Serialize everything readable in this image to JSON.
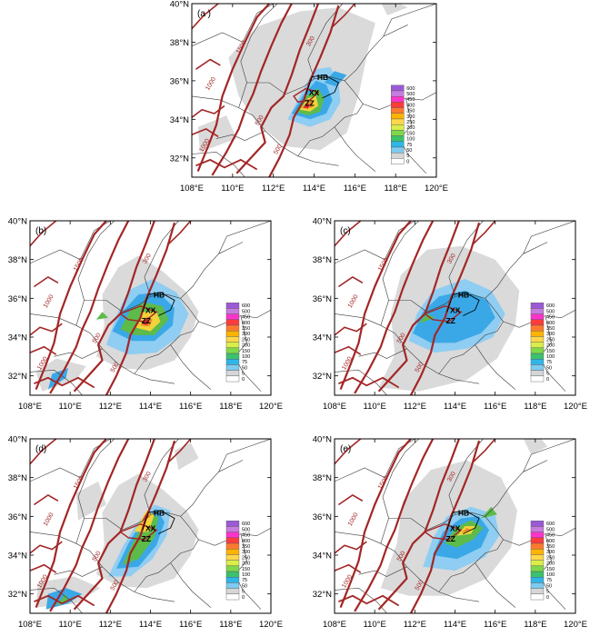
{
  "figure": {
    "panels": [
      {
        "id": "a",
        "label": "(a )"
      },
      {
        "id": "b",
        "label": "(b)"
      },
      {
        "id": "c",
        "label": "(c)"
      },
      {
        "id": "d",
        "label": "(d)"
      },
      {
        "id": "e",
        "label": "(e)"
      }
    ],
    "x_ticks": [
      "108°E",
      "110°E",
      "112°E",
      "114°E",
      "116°E",
      "118°E",
      "120°E"
    ],
    "y_ticks": [
      "32°N",
      "34°N",
      "36°N",
      "38°N",
      "40°N"
    ],
    "city_labels": {
      "hb": "HB",
      "xx": "XX",
      "zz": "ZZ"
    },
    "contour_labels": [
      "1000",
      "1500",
      "500",
      "300"
    ],
    "legend": {
      "levels": [
        "600",
        "500",
        "450",
        "400",
        "350",
        "300",
        "250",
        "200",
        "150",
        "100",
        "75",
        "50",
        "5",
        "0"
      ],
      "colors": [
        "#9b59d6",
        "#c77ce0",
        "#ff33cc",
        "#ff3b3b",
        "#ff7a2f",
        "#ffb300",
        "#ffd84a",
        "#d9ee4a",
        "#7fd84a",
        "#3ac26c",
        "#2fb6e8",
        "#7fcbf0",
        "#d6d6d6",
        "#ffffff"
      ]
    },
    "colors": {
      "contour": "#a32626",
      "border": "#3a3a3a",
      "light_rain": "#d8d8d8",
      "blue": "#3aa8e6",
      "light_blue": "#8fcdf2",
      "green": "#5dbb4a",
      "yellow": "#f2d33a",
      "orange": "#f08a2a",
      "red": "#e33030"
    }
  }
}
